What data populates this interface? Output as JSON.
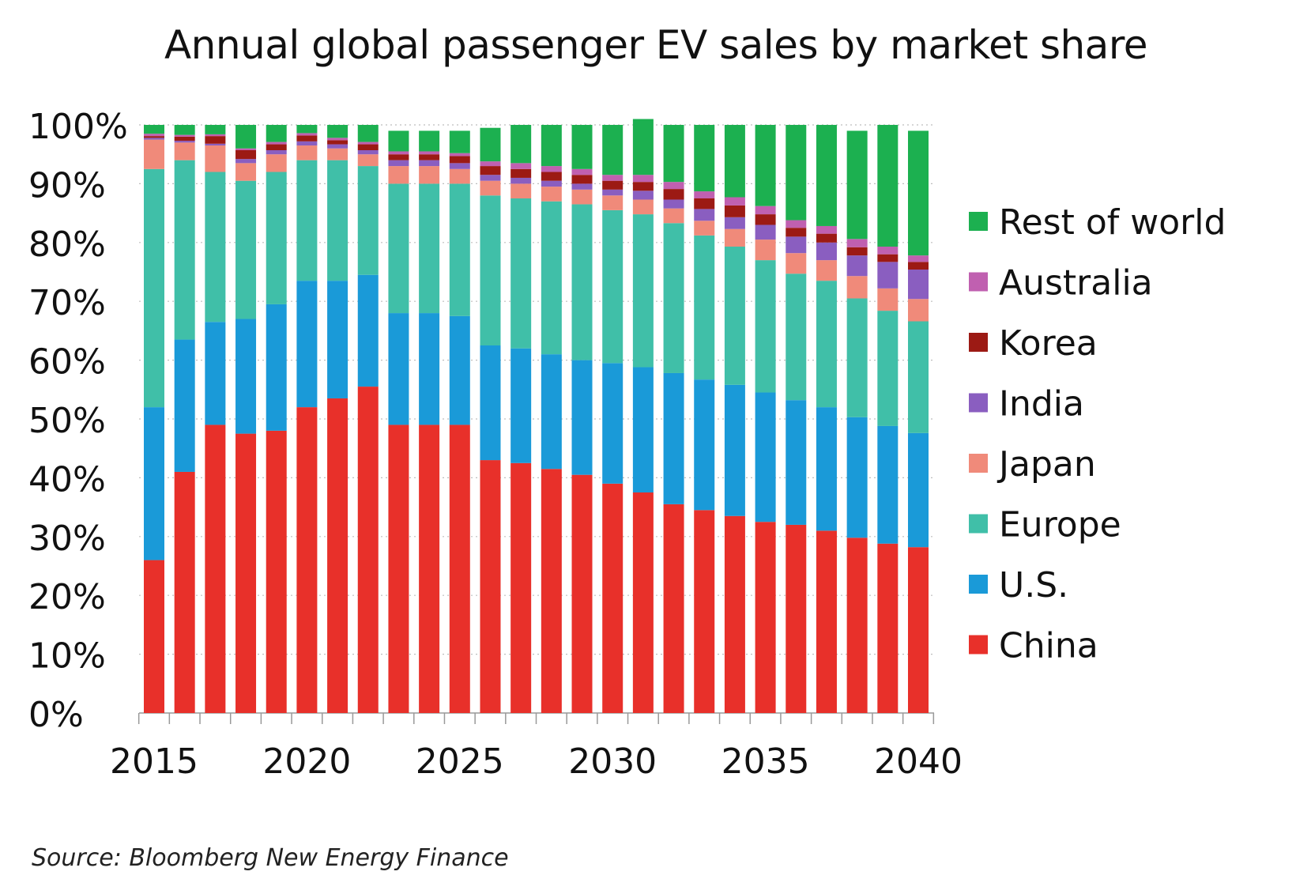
{
  "chart_data": {
    "type": "bar",
    "stacked": true,
    "title": "Annual global passenger EV sales by market share",
    "source": "Source: Bloomberg New Energy Finance",
    "ylim": [
      0,
      100
    ],
    "y_ticks": [
      "0%",
      "10%",
      "20%",
      "30%",
      "40%",
      "50%",
      "60%",
      "70%",
      "80%",
      "90%",
      "100%"
    ],
    "x_tick_labels": [
      "2015",
      "2020",
      "2025",
      "2030",
      "2035",
      "2040"
    ],
    "grid": true,
    "legend_position": "right",
    "categories": [
      "2015",
      "2016",
      "2017",
      "2018",
      "2019",
      "2020",
      "2021",
      "2022",
      "2023",
      "2024",
      "2025",
      "2026",
      "2027",
      "2028",
      "2029",
      "2030",
      "2031",
      "2032",
      "2033",
      "2034",
      "2035",
      "2036",
      "2037",
      "2038",
      "2039",
      "2040"
    ],
    "series": [
      {
        "name": "China",
        "color": "#e8302a",
        "values": [
          26,
          41,
          49,
          47.5,
          48,
          52,
          53.5,
          55.5,
          49,
          49,
          49,
          43,
          42.5,
          41.5,
          40.5,
          39,
          37.5,
          35.5,
          34.5,
          33.5,
          32.5,
          32,
          31,
          29.8,
          28.8,
          28.2
        ]
      },
      {
        "name": "U.S.",
        "color": "#1a9ad8",
        "values": [
          26,
          22.5,
          17.5,
          19.5,
          21.5,
          21.5,
          20,
          19,
          19,
          19,
          18.5,
          19.5,
          19.5,
          19.5,
          19.5,
          20.5,
          21.3,
          22.3,
          22.2,
          22.3,
          22,
          21.2,
          21,
          20.5,
          20,
          19.4
        ]
      },
      {
        "name": "Europe",
        "color": "#40bfa8",
        "values": [
          40.5,
          30.5,
          25.5,
          23.5,
          22.5,
          20.5,
          20.5,
          18.5,
          22,
          22,
          22.5,
          25.5,
          25.5,
          26,
          26.5,
          26,
          26,
          25.5,
          24.5,
          23.5,
          22.5,
          21.5,
          21.5,
          20.2,
          19.6,
          19
        ]
      },
      {
        "name": "Japan",
        "color": "#f08a7a",
        "values": [
          5,
          3,
          4.5,
          3,
          3,
          2.5,
          2,
          2,
          3,
          3,
          2.5,
          2.5,
          2.5,
          2.5,
          2.5,
          2.5,
          2.5,
          2.5,
          2.5,
          3,
          3.5,
          3.5,
          3.5,
          3.8,
          3.8,
          3.8
        ]
      },
      {
        "name": "India",
        "color": "#8a5ec0",
        "values": [
          0.3,
          0.3,
          0.3,
          0.7,
          0.7,
          0.7,
          0.7,
          0.7,
          1,
          1,
          1,
          1,
          1,
          1,
          1,
          1,
          1.5,
          1.5,
          2,
          2,
          2.5,
          2.8,
          3,
          3.5,
          4.5,
          5
        ]
      },
      {
        "name": "Korea",
        "color": "#9c1a14",
        "values": [
          0.3,
          0.7,
          1.3,
          1.5,
          1,
          1,
          0.7,
          1,
          1,
          1,
          1.2,
          1.5,
          1.5,
          1.5,
          1.5,
          1.5,
          1.5,
          1.8,
          1.8,
          2,
          1.8,
          1.5,
          1.5,
          1.4,
          1.3,
          1.3
        ]
      },
      {
        "name": "Australia",
        "color": "#c060b0",
        "values": [
          0.4,
          0.3,
          0.3,
          0.3,
          0.4,
          0.4,
          0.4,
          0.4,
          0.5,
          0.5,
          0.5,
          0.8,
          1,
          1,
          1,
          1,
          1.2,
          1.2,
          1.2,
          1.4,
          1.4,
          1.3,
          1.3,
          1.4,
          1.3,
          1.1
        ]
      },
      {
        "name": "Rest of world",
        "color": "#1cb050",
        "values": [
          1.5,
          1.7,
          1.6,
          4,
          2.9,
          1.4,
          2.2,
          2.9,
          3.5,
          3.5,
          3.8,
          5.7,
          6.5,
          7,
          7.5,
          8.5,
          9.5,
          9.7,
          11.3,
          12.3,
          13.8,
          16.2,
          17.2,
          18.4,
          20.7,
          21.2
        ]
      }
    ]
  }
}
